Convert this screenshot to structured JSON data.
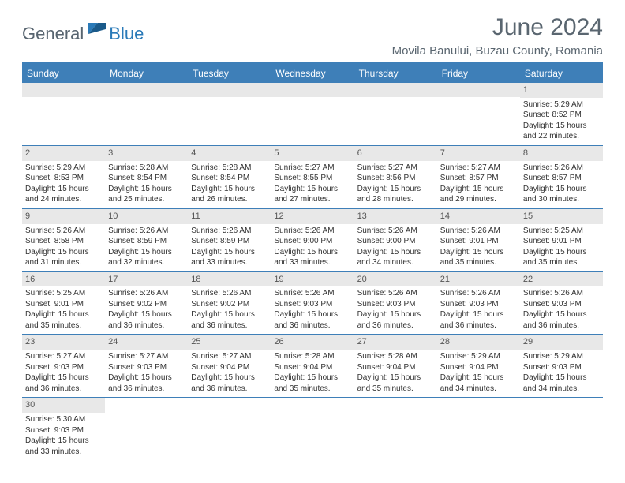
{
  "logo": {
    "general": "General",
    "blue": "Blue"
  },
  "title": "June 2024",
  "subtitle": "Movila Banului, Buzau County, Romania",
  "colors": {
    "header_bg": "#3e7fb8",
    "header_text": "#ffffff",
    "daynum_bg": "#e8e8e8",
    "border": "#3e7fb8",
    "title_color": "#5a6670",
    "logo_gray": "#57646f",
    "logo_blue": "#2a7ab8",
    "text": "#333333"
  },
  "day_headers": [
    "Sunday",
    "Monday",
    "Tuesday",
    "Wednesday",
    "Thursday",
    "Friday",
    "Saturday"
  ],
  "weeks": [
    [
      null,
      null,
      null,
      null,
      null,
      null,
      {
        "n": "1",
        "sr": "Sunrise: 5:29 AM",
        "ss": "Sunset: 8:52 PM",
        "d1": "Daylight: 15 hours",
        "d2": "and 22 minutes."
      }
    ],
    [
      {
        "n": "2",
        "sr": "Sunrise: 5:29 AM",
        "ss": "Sunset: 8:53 PM",
        "d1": "Daylight: 15 hours",
        "d2": "and 24 minutes."
      },
      {
        "n": "3",
        "sr": "Sunrise: 5:28 AM",
        "ss": "Sunset: 8:54 PM",
        "d1": "Daylight: 15 hours",
        "d2": "and 25 minutes."
      },
      {
        "n": "4",
        "sr": "Sunrise: 5:28 AM",
        "ss": "Sunset: 8:54 PM",
        "d1": "Daylight: 15 hours",
        "d2": "and 26 minutes."
      },
      {
        "n": "5",
        "sr": "Sunrise: 5:27 AM",
        "ss": "Sunset: 8:55 PM",
        "d1": "Daylight: 15 hours",
        "d2": "and 27 minutes."
      },
      {
        "n": "6",
        "sr": "Sunrise: 5:27 AM",
        "ss": "Sunset: 8:56 PM",
        "d1": "Daylight: 15 hours",
        "d2": "and 28 minutes."
      },
      {
        "n": "7",
        "sr": "Sunrise: 5:27 AM",
        "ss": "Sunset: 8:57 PM",
        "d1": "Daylight: 15 hours",
        "d2": "and 29 minutes."
      },
      {
        "n": "8",
        "sr": "Sunrise: 5:26 AM",
        "ss": "Sunset: 8:57 PM",
        "d1": "Daylight: 15 hours",
        "d2": "and 30 minutes."
      }
    ],
    [
      {
        "n": "9",
        "sr": "Sunrise: 5:26 AM",
        "ss": "Sunset: 8:58 PM",
        "d1": "Daylight: 15 hours",
        "d2": "and 31 minutes."
      },
      {
        "n": "10",
        "sr": "Sunrise: 5:26 AM",
        "ss": "Sunset: 8:59 PM",
        "d1": "Daylight: 15 hours",
        "d2": "and 32 minutes."
      },
      {
        "n": "11",
        "sr": "Sunrise: 5:26 AM",
        "ss": "Sunset: 8:59 PM",
        "d1": "Daylight: 15 hours",
        "d2": "and 33 minutes."
      },
      {
        "n": "12",
        "sr": "Sunrise: 5:26 AM",
        "ss": "Sunset: 9:00 PM",
        "d1": "Daylight: 15 hours",
        "d2": "and 33 minutes."
      },
      {
        "n": "13",
        "sr": "Sunrise: 5:26 AM",
        "ss": "Sunset: 9:00 PM",
        "d1": "Daylight: 15 hours",
        "d2": "and 34 minutes."
      },
      {
        "n": "14",
        "sr": "Sunrise: 5:26 AM",
        "ss": "Sunset: 9:01 PM",
        "d1": "Daylight: 15 hours",
        "d2": "and 35 minutes."
      },
      {
        "n": "15",
        "sr": "Sunrise: 5:25 AM",
        "ss": "Sunset: 9:01 PM",
        "d1": "Daylight: 15 hours",
        "d2": "and 35 minutes."
      }
    ],
    [
      {
        "n": "16",
        "sr": "Sunrise: 5:25 AM",
        "ss": "Sunset: 9:01 PM",
        "d1": "Daylight: 15 hours",
        "d2": "and 35 minutes."
      },
      {
        "n": "17",
        "sr": "Sunrise: 5:26 AM",
        "ss": "Sunset: 9:02 PM",
        "d1": "Daylight: 15 hours",
        "d2": "and 36 minutes."
      },
      {
        "n": "18",
        "sr": "Sunrise: 5:26 AM",
        "ss": "Sunset: 9:02 PM",
        "d1": "Daylight: 15 hours",
        "d2": "and 36 minutes."
      },
      {
        "n": "19",
        "sr": "Sunrise: 5:26 AM",
        "ss": "Sunset: 9:03 PM",
        "d1": "Daylight: 15 hours",
        "d2": "and 36 minutes."
      },
      {
        "n": "20",
        "sr": "Sunrise: 5:26 AM",
        "ss": "Sunset: 9:03 PM",
        "d1": "Daylight: 15 hours",
        "d2": "and 36 minutes."
      },
      {
        "n": "21",
        "sr": "Sunrise: 5:26 AM",
        "ss": "Sunset: 9:03 PM",
        "d1": "Daylight: 15 hours",
        "d2": "and 36 minutes."
      },
      {
        "n": "22",
        "sr": "Sunrise: 5:26 AM",
        "ss": "Sunset: 9:03 PM",
        "d1": "Daylight: 15 hours",
        "d2": "and 36 minutes."
      }
    ],
    [
      {
        "n": "23",
        "sr": "Sunrise: 5:27 AM",
        "ss": "Sunset: 9:03 PM",
        "d1": "Daylight: 15 hours",
        "d2": "and 36 minutes."
      },
      {
        "n": "24",
        "sr": "Sunrise: 5:27 AM",
        "ss": "Sunset: 9:03 PM",
        "d1": "Daylight: 15 hours",
        "d2": "and 36 minutes."
      },
      {
        "n": "25",
        "sr": "Sunrise: 5:27 AM",
        "ss": "Sunset: 9:04 PM",
        "d1": "Daylight: 15 hours",
        "d2": "and 36 minutes."
      },
      {
        "n": "26",
        "sr": "Sunrise: 5:28 AM",
        "ss": "Sunset: 9:04 PM",
        "d1": "Daylight: 15 hours",
        "d2": "and 35 minutes."
      },
      {
        "n": "27",
        "sr": "Sunrise: 5:28 AM",
        "ss": "Sunset: 9:04 PM",
        "d1": "Daylight: 15 hours",
        "d2": "and 35 minutes."
      },
      {
        "n": "28",
        "sr": "Sunrise: 5:29 AM",
        "ss": "Sunset: 9:04 PM",
        "d1": "Daylight: 15 hours",
        "d2": "and 34 minutes."
      },
      {
        "n": "29",
        "sr": "Sunrise: 5:29 AM",
        "ss": "Sunset: 9:03 PM",
        "d1": "Daylight: 15 hours",
        "d2": "and 34 minutes."
      }
    ],
    [
      {
        "n": "30",
        "sr": "Sunrise: 5:30 AM",
        "ss": "Sunset: 9:03 PM",
        "d1": "Daylight: 15 hours",
        "d2": "and 33 minutes."
      },
      null,
      null,
      null,
      null,
      null,
      null
    ]
  ]
}
